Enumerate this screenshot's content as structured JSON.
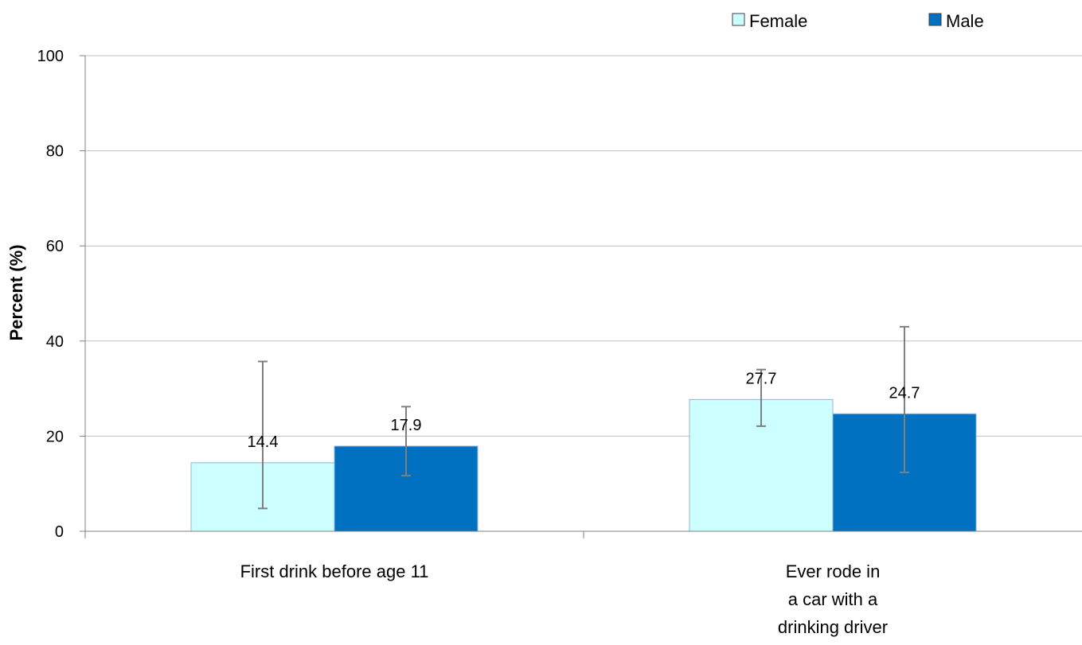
{
  "chart_data": {
    "type": "bar",
    "title": "",
    "xlabel": "",
    "ylabel": "Percent (%)",
    "ylim": [
      0,
      100
    ],
    "yticks": [
      0,
      20,
      40,
      60,
      80,
      100
    ],
    "grid": true,
    "legend_position": "top-right",
    "categories": [
      [
        "First drink before age 11"
      ],
      [
        "Ever rode in",
        "a car with a",
        "drinking driver"
      ]
    ],
    "series": [
      {
        "name": "Female",
        "color": "#CCFFFF",
        "values": [
          14.4,
          27.7
        ],
        "error_low": [
          4.8,
          22.1
        ],
        "error_high": [
          35.7,
          34.0
        ]
      },
      {
        "name": "Male",
        "color": "#0070C0",
        "values": [
          17.9,
          24.7
        ],
        "error_low": [
          11.7,
          12.4
        ],
        "error_high": [
          26.2,
          43.0
        ]
      }
    ]
  }
}
